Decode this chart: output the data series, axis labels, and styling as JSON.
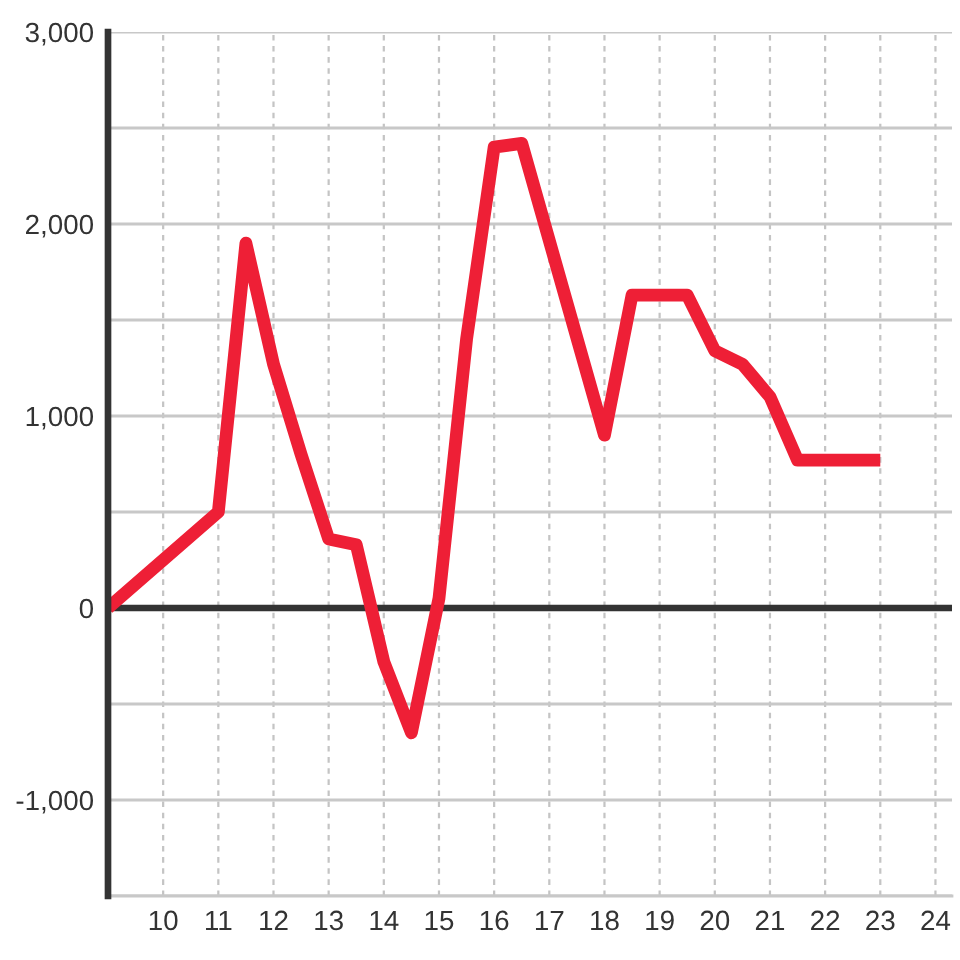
{
  "chart_data": {
    "type": "line",
    "x": [
      9,
      11,
      11.5,
      12,
      12.5,
      13,
      13.5,
      14,
      14.5,
      15,
      15.5,
      16,
      16.5,
      18,
      18.5,
      19.5,
      20,
      20.5,
      21,
      21.5,
      23
    ],
    "series": [
      {
        "color": "#ee1f36",
        "values": [
          0,
          500,
          1900,
          1270,
          800,
          360,
          330,
          -280,
          -650,
          50,
          1400,
          2400,
          2420,
          900,
          1630,
          1630,
          1340,
          1270,
          1100,
          770,
          770
        ]
      }
    ],
    "xlim": [
      9,
      24.3
    ],
    "ylim": [
      -1500,
      3000
    ],
    "xticks": [
      10,
      11,
      12,
      13,
      14,
      15,
      16,
      17,
      18,
      19,
      20,
      21,
      22,
      23,
      24
    ],
    "yticks": [
      {
        "value": -1500,
        "label": null
      },
      {
        "value": -1000,
        "label": "-1,000"
      },
      {
        "value": -500,
        "label": null
      },
      {
        "value": 0,
        "label": "0"
      },
      {
        "value": 500,
        "label": null
      },
      {
        "value": 1000,
        "label": "1,000"
      },
      {
        "value": 1500,
        "label": null
      },
      {
        "value": 2000,
        "label": "2,000"
      },
      {
        "value": 2500,
        "label": null
      },
      {
        "value": 3000,
        "label": "3,000"
      }
    ],
    "grid": true,
    "ref_lines": [
      {
        "axis": "y",
        "value": 0,
        "color": "#333333"
      }
    ]
  }
}
